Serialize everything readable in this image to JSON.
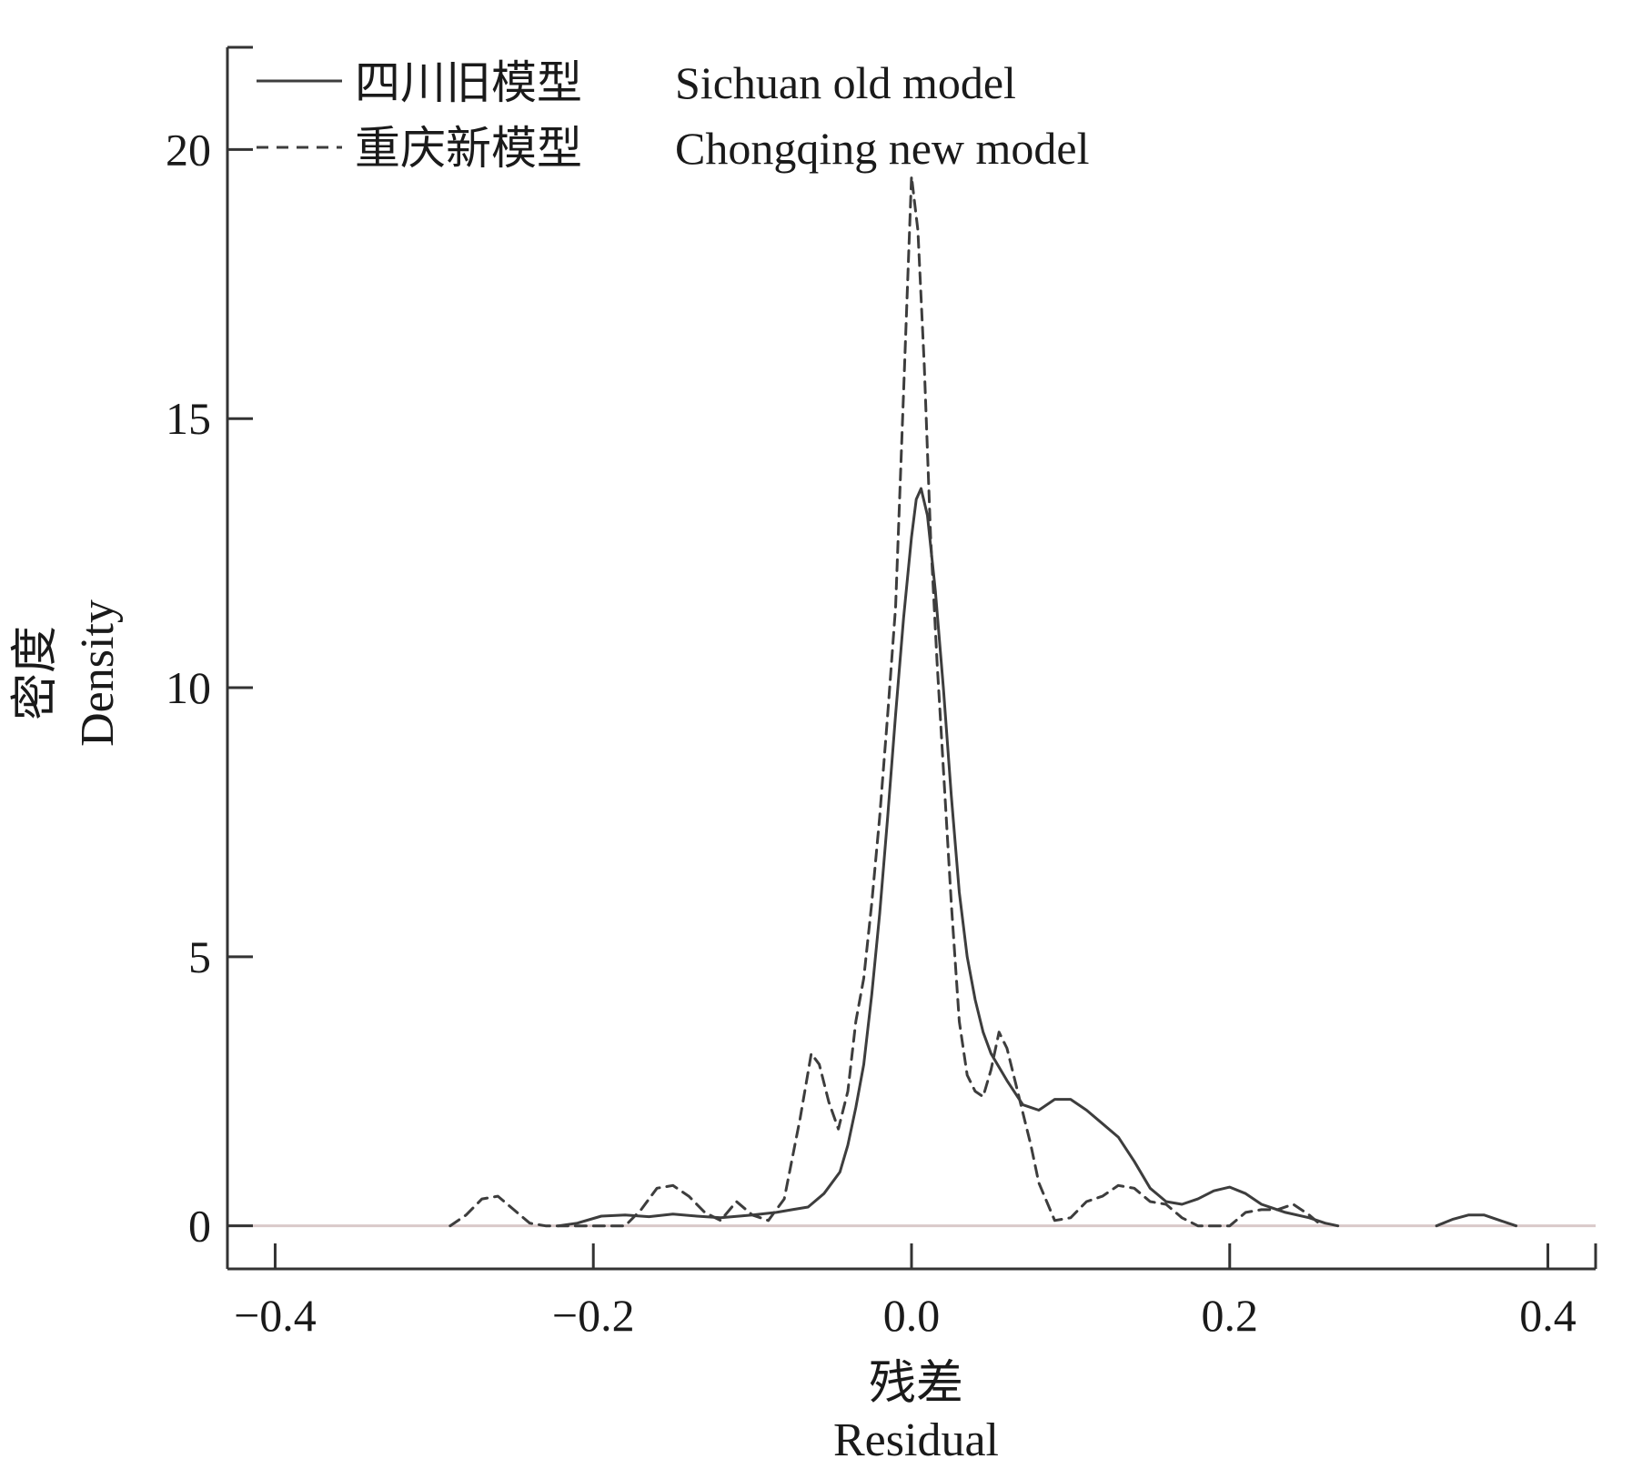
{
  "chart_data": {
    "type": "line",
    "xlabel_zh": "残差",
    "xlabel_en": "Residual",
    "ylabel_zh": "密度",
    "ylabel_en": "Density",
    "xlim": [
      -0.43,
      0.43
    ],
    "ylim": [
      -0.8,
      21.9
    ],
    "x_ticks": [
      -0.4,
      -0.2,
      0.0,
      0.2,
      0.4
    ],
    "x_tick_labels": [
      "−0.4",
      "−0.2",
      "0.0",
      "0.2",
      "0.4"
    ],
    "y_ticks": [
      0,
      5,
      10,
      15,
      20
    ],
    "y_tick_labels": [
      "0",
      "5",
      "10",
      "15",
      "20"
    ],
    "grid": false,
    "legend_position": "top-left",
    "colors": {
      "axis": "#333333",
      "series": "#3d3d3d",
      "baseline": "#d9c9c9"
    },
    "series": [
      {
        "name_zh": "四川旧模型",
        "name_en": "Sichuan old model",
        "style": "solid",
        "segments": [
          [
            [
              -0.222,
              0
            ],
            [
              -0.21,
              0.05
            ],
            [
              -0.195,
              0.18
            ],
            [
              -0.18,
              0.2
            ],
            [
              -0.165,
              0.17
            ],
            [
              -0.15,
              0.22
            ],
            [
              -0.135,
              0.18
            ],
            [
              -0.12,
              0.15
            ],
            [
              -0.1,
              0.2
            ],
            [
              -0.085,
              0.25
            ],
            [
              -0.075,
              0.3
            ],
            [
              -0.065,
              0.35
            ],
            [
              -0.055,
              0.6
            ],
            [
              -0.045,
              1.0
            ],
            [
              -0.04,
              1.5
            ],
            [
              -0.035,
              2.2
            ],
            [
              -0.03,
              3.0
            ],
            [
              -0.025,
              4.3
            ],
            [
              -0.02,
              5.8
            ],
            [
              -0.015,
              7.6
            ],
            [
              -0.01,
              9.5
            ],
            [
              -0.005,
              11.3
            ],
            [
              0,
              12.8
            ],
            [
              0.003,
              13.5
            ],
            [
              0.006,
              13.7
            ],
            [
              0.01,
              13.2
            ],
            [
              0.015,
              11.8
            ],
            [
              0.02,
              10.0
            ],
            [
              0.025,
              8.0
            ],
            [
              0.03,
              6.2
            ],
            [
              0.035,
              5.0
            ],
            [
              0.04,
              4.2
            ],
            [
              0.045,
              3.6
            ],
            [
              0.05,
              3.2
            ],
            [
              0.06,
              2.7
            ],
            [
              0.07,
              2.25
            ],
            [
              0.08,
              2.15
            ],
            [
              0.09,
              2.35
            ],
            [
              0.1,
              2.35
            ],
            [
              0.11,
              2.15
            ],
            [
              0.12,
              1.9
            ],
            [
              0.13,
              1.65
            ],
            [
              0.14,
              1.2
            ],
            [
              0.15,
              0.7
            ],
            [
              0.16,
              0.45
            ],
            [
              0.17,
              0.4
            ],
            [
              0.18,
              0.5
            ],
            [
              0.19,
              0.65
            ],
            [
              0.2,
              0.72
            ],
            [
              0.21,
              0.6
            ],
            [
              0.22,
              0.4
            ],
            [
              0.235,
              0.25
            ],
            [
              0.25,
              0.15
            ],
            [
              0.26,
              0.05
            ],
            [
              0.268,
              0
            ]
          ],
          [
            [
              0.33,
              0
            ],
            [
              0.34,
              0.12
            ],
            [
              0.35,
              0.2
            ],
            [
              0.36,
              0.2
            ],
            [
              0.37,
              0.1
            ],
            [
              0.38,
              0
            ]
          ]
        ]
      },
      {
        "name_zh": "重庆新模型",
        "name_en": "Chongqing new model",
        "style": "dashed",
        "segments": [
          [
            [
              -0.29,
              0
            ],
            [
              -0.28,
              0.2
            ],
            [
              -0.27,
              0.5
            ],
            [
              -0.26,
              0.55
            ],
            [
              -0.25,
              0.3
            ],
            [
              -0.24,
              0.05
            ],
            [
              -0.23,
              0
            ],
            [
              -0.2,
              0
            ],
            [
              -0.18,
              0
            ],
            [
              -0.17,
              0.3
            ],
            [
              -0.16,
              0.7
            ],
            [
              -0.15,
              0.75
            ],
            [
              -0.14,
              0.55
            ],
            [
              -0.13,
              0.25
            ],
            [
              -0.12,
              0.1
            ],
            [
              -0.11,
              0.45
            ],
            [
              -0.1,
              0.2
            ],
            [
              -0.09,
              0.1
            ],
            [
              -0.08,
              0.5
            ],
            [
              -0.07,
              2.0
            ],
            [
              -0.063,
              3.2
            ],
            [
              -0.058,
              3.0
            ],
            [
              -0.052,
              2.3
            ],
            [
              -0.046,
              1.8
            ],
            [
              -0.04,
              2.5
            ],
            [
              -0.035,
              3.8
            ],
            [
              -0.03,
              4.6
            ],
            [
              -0.025,
              6.0
            ],
            [
              -0.02,
              7.6
            ],
            [
              -0.015,
              9.5
            ],
            [
              -0.01,
              11.5
            ],
            [
              -0.005,
              15.5
            ],
            [
              0,
              19.5
            ],
            [
              0.004,
              18.5
            ],
            [
              0.008,
              16.0
            ],
            [
              0.012,
              12.8
            ],
            [
              0.016,
              10.5
            ],
            [
              0.02,
              8.5
            ],
            [
              0.025,
              6.0
            ],
            [
              0.03,
              3.8
            ],
            [
              0.035,
              2.8
            ],
            [
              0.04,
              2.5
            ],
            [
              0.045,
              2.4
            ],
            [
              0.05,
              2.9
            ],
            [
              0.055,
              3.6
            ],
            [
              0.06,
              3.3
            ],
            [
              0.065,
              2.7
            ],
            [
              0.07,
              2.1
            ],
            [
              0.075,
              1.5
            ],
            [
              0.08,
              0.8
            ],
            [
              0.09,
              0.1
            ],
            [
              0.1,
              0.15
            ],
            [
              0.11,
              0.45
            ],
            [
              0.12,
              0.55
            ],
            [
              0.13,
              0.75
            ],
            [
              0.14,
              0.7
            ],
            [
              0.15,
              0.45
            ],
            [
              0.16,
              0.4
            ],
            [
              0.17,
              0.15
            ],
            [
              0.18,
              0
            ],
            [
              0.2,
              0
            ],
            [
              0.21,
              0.25
            ],
            [
              0.22,
              0.3
            ],
            [
              0.23,
              0.3
            ],
            [
              0.24,
              0.4
            ],
            [
              0.25,
              0.2
            ],
            [
              0.258,
              0
            ]
          ]
        ]
      }
    ]
  }
}
